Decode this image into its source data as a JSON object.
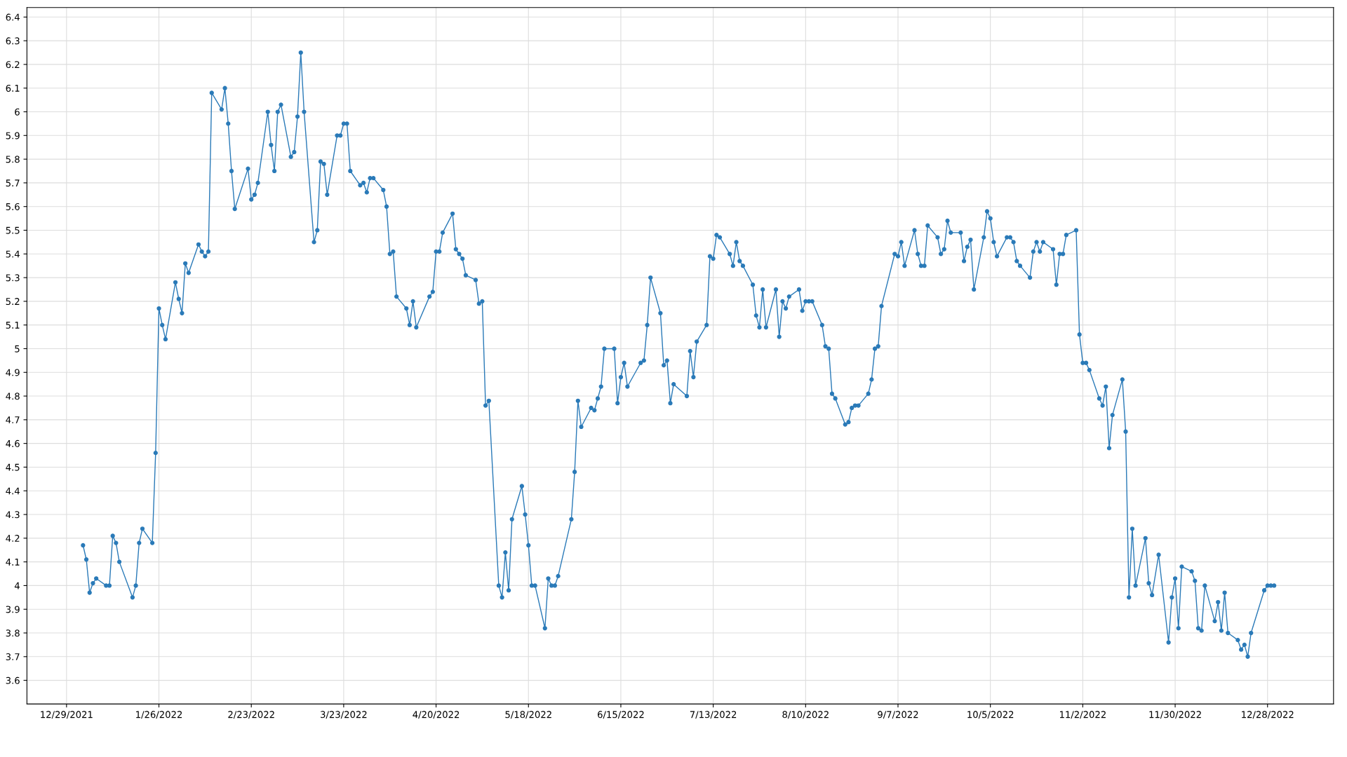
{
  "chart_data": {
    "type": "line",
    "x": [
      "2022-01-03",
      "2022-01-04",
      "2022-01-05",
      "2022-01-06",
      "2022-01-07",
      "2022-01-10",
      "2022-01-11",
      "2022-01-12",
      "2022-01-13",
      "2022-01-14",
      "2022-01-18",
      "2022-01-19",
      "2022-01-20",
      "2022-01-21",
      "2022-01-24",
      "2022-01-25",
      "2022-01-26",
      "2022-01-27",
      "2022-01-28",
      "2022-01-31",
      "2022-02-01",
      "2022-02-02",
      "2022-02-03",
      "2022-02-04",
      "2022-02-07",
      "2022-02-08",
      "2022-02-09",
      "2022-02-10",
      "2022-02-11",
      "2022-02-14",
      "2022-02-15",
      "2022-02-16",
      "2022-02-17",
      "2022-02-18",
      "2022-02-22",
      "2022-02-23",
      "2022-02-24",
      "2022-02-25",
      "2022-02-28",
      "2022-03-01",
      "2022-03-02",
      "2022-03-03",
      "2022-03-04",
      "2022-03-07",
      "2022-03-08",
      "2022-03-09",
      "2022-03-10",
      "2022-03-11",
      "2022-03-14",
      "2022-03-15",
      "2022-03-16",
      "2022-03-17",
      "2022-03-18",
      "2022-03-21",
      "2022-03-22",
      "2022-03-23",
      "2022-03-24",
      "2022-03-25",
      "2022-03-28",
      "2022-03-29",
      "2022-03-30",
      "2022-03-31",
      "2022-04-01",
      "2022-04-04",
      "2022-04-05",
      "2022-04-06",
      "2022-04-07",
      "2022-04-08",
      "2022-04-11",
      "2022-04-12",
      "2022-04-13",
      "2022-04-14",
      "2022-04-18",
      "2022-04-19",
      "2022-04-20",
      "2022-04-21",
      "2022-04-22",
      "2022-04-25",
      "2022-04-26",
      "2022-04-27",
      "2022-04-28",
      "2022-04-29",
      "2022-05-02",
      "2022-05-03",
      "2022-05-04",
      "2022-05-05",
      "2022-05-06",
      "2022-05-09",
      "2022-05-10",
      "2022-05-11",
      "2022-05-12",
      "2022-05-13",
      "2022-05-16",
      "2022-05-17",
      "2022-05-18",
      "2022-05-19",
      "2022-05-20",
      "2022-05-23",
      "2022-05-24",
      "2022-05-25",
      "2022-05-26",
      "2022-05-27",
      "2022-05-31",
      "2022-06-01",
      "2022-06-02",
      "2022-06-03",
      "2022-06-06",
      "2022-06-07",
      "2022-06-08",
      "2022-06-09",
      "2022-06-10",
      "2022-06-13",
      "2022-06-14",
      "2022-06-15",
      "2022-06-16",
      "2022-06-17",
      "2022-06-21",
      "2022-06-22",
      "2022-06-23",
      "2022-06-24",
      "2022-06-27",
      "2022-06-28",
      "2022-06-29",
      "2022-06-30",
      "2022-07-01",
      "2022-07-05",
      "2022-07-06",
      "2022-07-07",
      "2022-07-08",
      "2022-07-11",
      "2022-07-12",
      "2022-07-13",
      "2022-07-14",
      "2022-07-15",
      "2022-07-18",
      "2022-07-19",
      "2022-07-20",
      "2022-07-21",
      "2022-07-22",
      "2022-07-25",
      "2022-07-26",
      "2022-07-27",
      "2022-07-28",
      "2022-07-29",
      "2022-08-01",
      "2022-08-02",
      "2022-08-03",
      "2022-08-04",
      "2022-08-05",
      "2022-08-08",
      "2022-08-09",
      "2022-08-10",
      "2022-08-11",
      "2022-08-12",
      "2022-08-15",
      "2022-08-16",
      "2022-08-17",
      "2022-08-18",
      "2022-08-19",
      "2022-08-22",
      "2022-08-23",
      "2022-08-24",
      "2022-08-25",
      "2022-08-26",
      "2022-08-29",
      "2022-08-30",
      "2022-08-31",
      "2022-09-01",
      "2022-09-02",
      "2022-09-06",
      "2022-09-07",
      "2022-09-08",
      "2022-09-09",
      "2022-09-12",
      "2022-09-13",
      "2022-09-14",
      "2022-09-15",
      "2022-09-16",
      "2022-09-19",
      "2022-09-20",
      "2022-09-21",
      "2022-09-22",
      "2022-09-23",
      "2022-09-26",
      "2022-09-27",
      "2022-09-28",
      "2022-09-29",
      "2022-09-30",
      "2022-10-03",
      "2022-10-04",
      "2022-10-05",
      "2022-10-06",
      "2022-10-07",
      "2022-10-10",
      "2022-10-11",
      "2022-10-12",
      "2022-10-13",
      "2022-10-14",
      "2022-10-17",
      "2022-10-18",
      "2022-10-19",
      "2022-10-20",
      "2022-10-21",
      "2022-10-24",
      "2022-10-25",
      "2022-10-26",
      "2022-10-27",
      "2022-10-28",
      "2022-10-31",
      "2022-11-01",
      "2022-11-02",
      "2022-11-03",
      "2022-11-04",
      "2022-11-07",
      "2022-11-08",
      "2022-11-09",
      "2022-11-10",
      "2022-11-11",
      "2022-11-14",
      "2022-11-15",
      "2022-11-16",
      "2022-11-17",
      "2022-11-18",
      "2022-11-21",
      "2022-11-22",
      "2022-11-23",
      "2022-11-25",
      "2022-11-28",
      "2022-11-29",
      "2022-11-30",
      "2022-12-01",
      "2022-12-02",
      "2022-12-05",
      "2022-12-06",
      "2022-12-07",
      "2022-12-08",
      "2022-12-09",
      "2022-12-12",
      "2022-12-13",
      "2022-12-14",
      "2022-12-15",
      "2022-12-16",
      "2022-12-19",
      "2022-12-20",
      "2022-12-21",
      "2022-12-22",
      "2022-12-23",
      "2022-12-27",
      "2022-12-28",
      "2022-12-29",
      "2022-12-30"
    ],
    "series": [
      {
        "color": "#2a7ab8",
        "values": [
          4.17,
          4.11,
          3.97,
          4.01,
          4.03,
          4.0,
          4.0,
          4.21,
          4.18,
          4.1,
          3.95,
          4.0,
          4.18,
          4.24,
          4.18,
          4.56,
          5.17,
          5.1,
          5.04,
          5.28,
          5.21,
          5.15,
          5.36,
          5.32,
          5.44,
          5.41,
          5.39,
          5.41,
          6.08,
          6.01,
          6.1,
          5.95,
          5.75,
          5.59,
          5.76,
          5.63,
          5.65,
          5.7,
          6.0,
          5.86,
          5.75,
          6.0,
          6.03,
          5.81,
          5.83,
          5.98,
          6.25,
          6.0,
          5.45,
          5.5,
          5.79,
          5.78,
          5.65,
          5.9,
          5.9,
          5.95,
          5.95,
          5.75,
          5.69,
          5.7,
          5.66,
          5.72,
          5.72,
          5.67,
          5.6,
          5.4,
          5.41,
          5.22,
          5.17,
          5.1,
          5.2,
          5.09,
          5.22,
          5.24,
          5.41,
          5.41,
          5.49,
          5.57,
          5.42,
          5.4,
          5.38,
          5.31,
          5.29,
          5.19,
          5.2,
          4.76,
          4.78,
          4.0,
          3.95,
          4.14,
          3.98,
          4.28,
          4.42,
          4.3,
          4.17,
          4.0,
          4.0,
          3.82,
          4.03,
          4.0,
          4.0,
          4.04,
          4.28,
          4.48,
          4.78,
          4.67,
          4.75,
          4.74,
          4.79,
          4.84,
          5.0,
          5.0,
          4.77,
          4.88,
          4.94,
          4.84,
          4.94,
          4.95,
          5.1,
          5.3,
          5.15,
          4.93,
          4.95,
          4.77,
          4.85,
          4.8,
          4.99,
          4.88,
          5.03,
          5.1,
          5.39,
          5.38,
          5.48,
          5.47,
          5.4,
          5.35,
          5.45,
          5.37,
          5.35,
          5.27,
          5.14,
          5.09,
          5.25,
          5.09,
          5.25,
          5.05,
          5.2,
          5.17,
          5.22,
          5.25,
          5.16,
          5.2,
          5.2,
          5.2,
          5.1,
          5.01,
          5.0,
          4.81,
          4.79,
          4.68,
          4.69,
          4.75,
          4.76,
          4.76,
          4.81,
          4.87,
          5.0,
          5.01,
          5.18,
          5.4,
          5.39,
          5.45,
          5.35,
          5.5,
          5.4,
          5.35,
          5.35,
          5.52,
          5.47,
          5.4,
          5.42,
          5.54,
          5.49,
          5.49,
          5.37,
          5.43,
          5.46,
          5.25,
          5.47,
          5.58,
          5.55,
          5.45,
          5.39,
          5.47,
          5.47,
          5.45,
          5.37,
          5.35,
          5.3,
          5.41,
          5.45,
          5.41,
          5.45,
          5.42,
          5.27,
          5.4,
          5.4,
          5.48,
          5.5,
          5.06,
          4.94,
          4.94,
          4.91,
          4.79,
          4.76,
          4.84,
          4.58,
          4.72,
          4.87,
          4.65,
          3.95,
          4.24,
          4.0,
          4.2,
          4.01,
          3.96,
          4.13,
          3.76,
          3.95,
          4.03,
          3.82,
          4.08,
          4.06,
          4.02,
          3.82,
          3.81,
          4.0,
          3.85,
          3.93,
          3.81,
          3.97,
          3.8,
          3.77,
          3.73,
          3.75,
          3.7,
          3.8,
          3.98,
          4.0,
          4.0,
          4.0
        ]
      }
    ],
    "xlim": [
      "2021-12-17",
      "2023-01-17"
    ],
    "xticks": [
      {
        "value": "2021-12-29",
        "label": "12/29/2021"
      },
      {
        "value": "2022-01-26",
        "label": "1/26/2022"
      },
      {
        "value": "2022-02-23",
        "label": "2/23/2022"
      },
      {
        "value": "2022-03-23",
        "label": "3/23/2022"
      },
      {
        "value": "2022-04-20",
        "label": "4/20/2022"
      },
      {
        "value": "2022-05-18",
        "label": "5/18/2022"
      },
      {
        "value": "2022-06-15",
        "label": "6/15/2022"
      },
      {
        "value": "2022-07-13",
        "label": "7/13/2022"
      },
      {
        "value": "2022-08-10",
        "label": "8/10/2022"
      },
      {
        "value": "2022-09-07",
        "label": "9/7/2022"
      },
      {
        "value": "2022-10-05",
        "label": "10/5/2022"
      },
      {
        "value": "2022-11-02",
        "label": "11/2/2022"
      },
      {
        "value": "2022-11-30",
        "label": "11/30/2022"
      },
      {
        "value": "2022-12-28",
        "label": "12/28/2022"
      }
    ],
    "ylim": [
      3.5,
      6.44
    ],
    "yticks": [
      3.6,
      3.7,
      3.8,
      3.9,
      4,
      4.1,
      4.2,
      4.3,
      4.4,
      4.5,
      4.6,
      4.7,
      4.8,
      4.9,
      5,
      5.1,
      5.2,
      5.3,
      5.4,
      5.5,
      5.6,
      5.7,
      5.8,
      5.9,
      6,
      6.1,
      6.2,
      6.3,
      6.4
    ],
    "grid": true,
    "marker": "circle",
    "line_style": "solid"
  }
}
